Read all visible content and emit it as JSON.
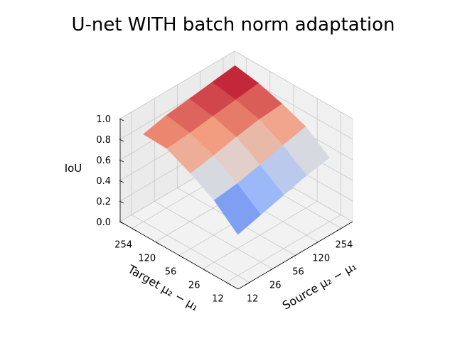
{
  "chart_data": {
    "type": "surface",
    "title": "U-net WITH batch norm adaptation",
    "xlabel": "Source μ₂ − μ₁",
    "ylabel": "Target μ₂ − μ₁",
    "zlabel": "IoU",
    "x_ticks": [
      "12",
      "26",
      "56",
      "120",
      "254"
    ],
    "y_ticks": [
      "12",
      "26",
      "56",
      "120",
      "254"
    ],
    "z_ticks": [
      "0.0",
      "0.2",
      "0.4",
      "0.6",
      "0.8",
      "1.0"
    ],
    "zlim": [
      0,
      1
    ],
    "colormap": "coolwarm",
    "grid": true,
    "z_values_note_rows_target_cols_source": [
      [
        0.4,
        0.46,
        0.52,
        0.58,
        0.62
      ],
      [
        0.6,
        0.63,
        0.68,
        0.74,
        0.79
      ],
      [
        0.73,
        0.77,
        0.82,
        0.86,
        0.88
      ],
      [
        0.84,
        0.86,
        0.89,
        0.92,
        0.95
      ],
      [
        0.85,
        0.9,
        0.93,
        0.96,
        0.99
      ]
    ]
  }
}
